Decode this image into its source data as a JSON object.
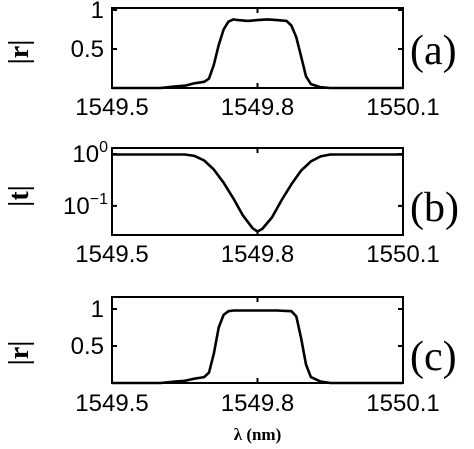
{
  "chart_data": [
    {
      "type": "line",
      "panel_label": "(a)",
      "ylabel": "|r|",
      "xlim": [
        1549.5,
        1550.1
      ],
      "ylim": [
        0,
        1
      ],
      "yscale": "linear",
      "xticks": [
        "1549.5",
        "1549.8",
        "1550.1"
      ],
      "yticks": [
        {
          "value": 1,
          "label": "1"
        },
        {
          "value": 0.5,
          "label": "0.5"
        }
      ],
      "series": [
        {
          "x": [
            1549.5,
            1549.6,
            1549.63,
            1549.65,
            1549.67,
            1549.69,
            1549.7,
            1549.71,
            1549.72,
            1549.73,
            1549.74,
            1549.75,
            1549.76,
            1549.78,
            1549.8,
            1549.82,
            1549.84,
            1549.86,
            1549.87,
            1549.88,
            1549.89,
            1549.9,
            1549.91,
            1549.93,
            1549.95,
            1550.1
          ],
          "y": [
            0.0,
            0.0,
            0.02,
            0.03,
            0.06,
            0.08,
            0.12,
            0.3,
            0.55,
            0.75,
            0.85,
            0.88,
            0.87,
            0.86,
            0.87,
            0.88,
            0.87,
            0.86,
            0.8,
            0.65,
            0.4,
            0.15,
            0.05,
            0.01,
            0.0,
            0.0
          ]
        }
      ]
    },
    {
      "type": "line",
      "panel_label": "(b)",
      "ylabel": "|t|",
      "xlim": [
        1549.5,
        1550.1
      ],
      "ylim": [
        0.03,
        1.0
      ],
      "yscale": "log",
      "xticks": [
        "1549.5",
        "1549.8",
        "1550.1"
      ],
      "yticks": [
        {
          "value": 1,
          "label": "10",
          "exp": "0"
        },
        {
          "value": 0.1,
          "label": "10",
          "exp": "−1"
        }
      ],
      "series": [
        {
          "x": [
            1549.5,
            1549.65,
            1549.67,
            1549.69,
            1549.71,
            1549.73,
            1549.75,
            1549.77,
            1549.79,
            1549.8,
            1549.81,
            1549.83,
            1549.85,
            1549.87,
            1549.89,
            1549.91,
            1549.93,
            1549.95,
            1550.1
          ],
          "y": [
            0.98,
            0.98,
            0.92,
            0.75,
            0.5,
            0.28,
            0.14,
            0.065,
            0.037,
            0.032,
            0.036,
            0.06,
            0.13,
            0.26,
            0.48,
            0.72,
            0.9,
            0.98,
            0.98
          ]
        }
      ]
    },
    {
      "type": "line",
      "panel_label": "(c)",
      "ylabel": "|r|",
      "xlabel": "λ (nm)",
      "xlim": [
        1549.5,
        1550.1
      ],
      "ylim": [
        0,
        1
      ],
      "yscale": "linear",
      "xticks": [
        "1549.5",
        "1549.8",
        "1550.1"
      ],
      "yticks": [
        {
          "value": 1,
          "label": "1"
        },
        {
          "value": 0.5,
          "label": "0.5"
        }
      ],
      "series": [
        {
          "x": [
            1549.5,
            1549.6,
            1549.63,
            1549.65,
            1549.67,
            1549.69,
            1549.7,
            1549.71,
            1549.72,
            1549.73,
            1549.74,
            1549.75,
            1549.76,
            1549.8,
            1549.84,
            1549.87,
            1549.88,
            1549.89,
            1549.9,
            1549.91,
            1549.93,
            1549.95,
            1550.1
          ],
          "y": [
            0.0,
            0.0,
            0.02,
            0.03,
            0.06,
            0.08,
            0.14,
            0.4,
            0.75,
            0.92,
            0.97,
            0.98,
            0.98,
            0.98,
            0.98,
            0.97,
            0.9,
            0.6,
            0.25,
            0.08,
            0.02,
            0.0,
            0.0
          ]
        }
      ]
    }
  ]
}
